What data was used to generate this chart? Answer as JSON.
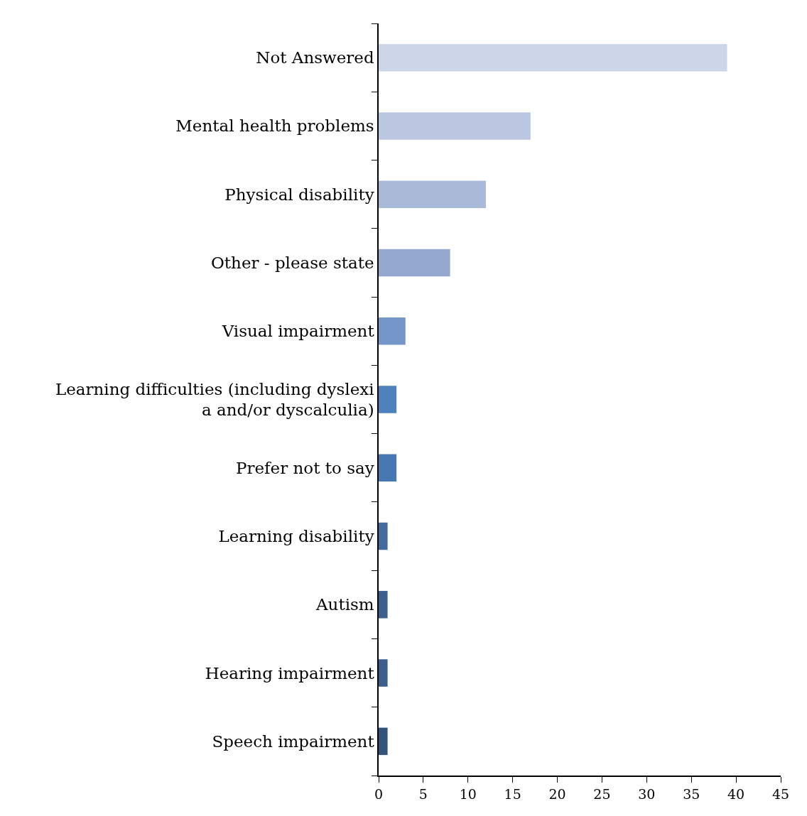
{
  "chart_data": {
    "type": "bar",
    "orientation": "horizontal",
    "categories": [
      "Not Answered",
      "Mental health problems",
      "Physical disability",
      "Other - please state",
      "Visual impairment",
      "Learning difficulties (including dyslexi\na and/or dyscalculia)",
      "Prefer not to say",
      "Learning disability",
      "Autism",
      "Hearing impairment",
      "Speech impairment"
    ],
    "values": [
      39,
      17,
      12,
      8,
      3,
      2,
      2,
      1,
      1,
      1,
      1
    ],
    "colors": [
      "#cdd6e7",
      "#bbc7e0",
      "#a9b9d8",
      "#95a9d0",
      "#7596c8",
      "#4f81bd",
      "#4878b2",
      "#436ba0",
      "#3d5f8e",
      "#3b5e8c",
      "#33547a"
    ],
    "xlim": [
      0,
      45
    ],
    "xticks": [
      0,
      5,
      10,
      15,
      20,
      25,
      30,
      35,
      40,
      45
    ]
  }
}
